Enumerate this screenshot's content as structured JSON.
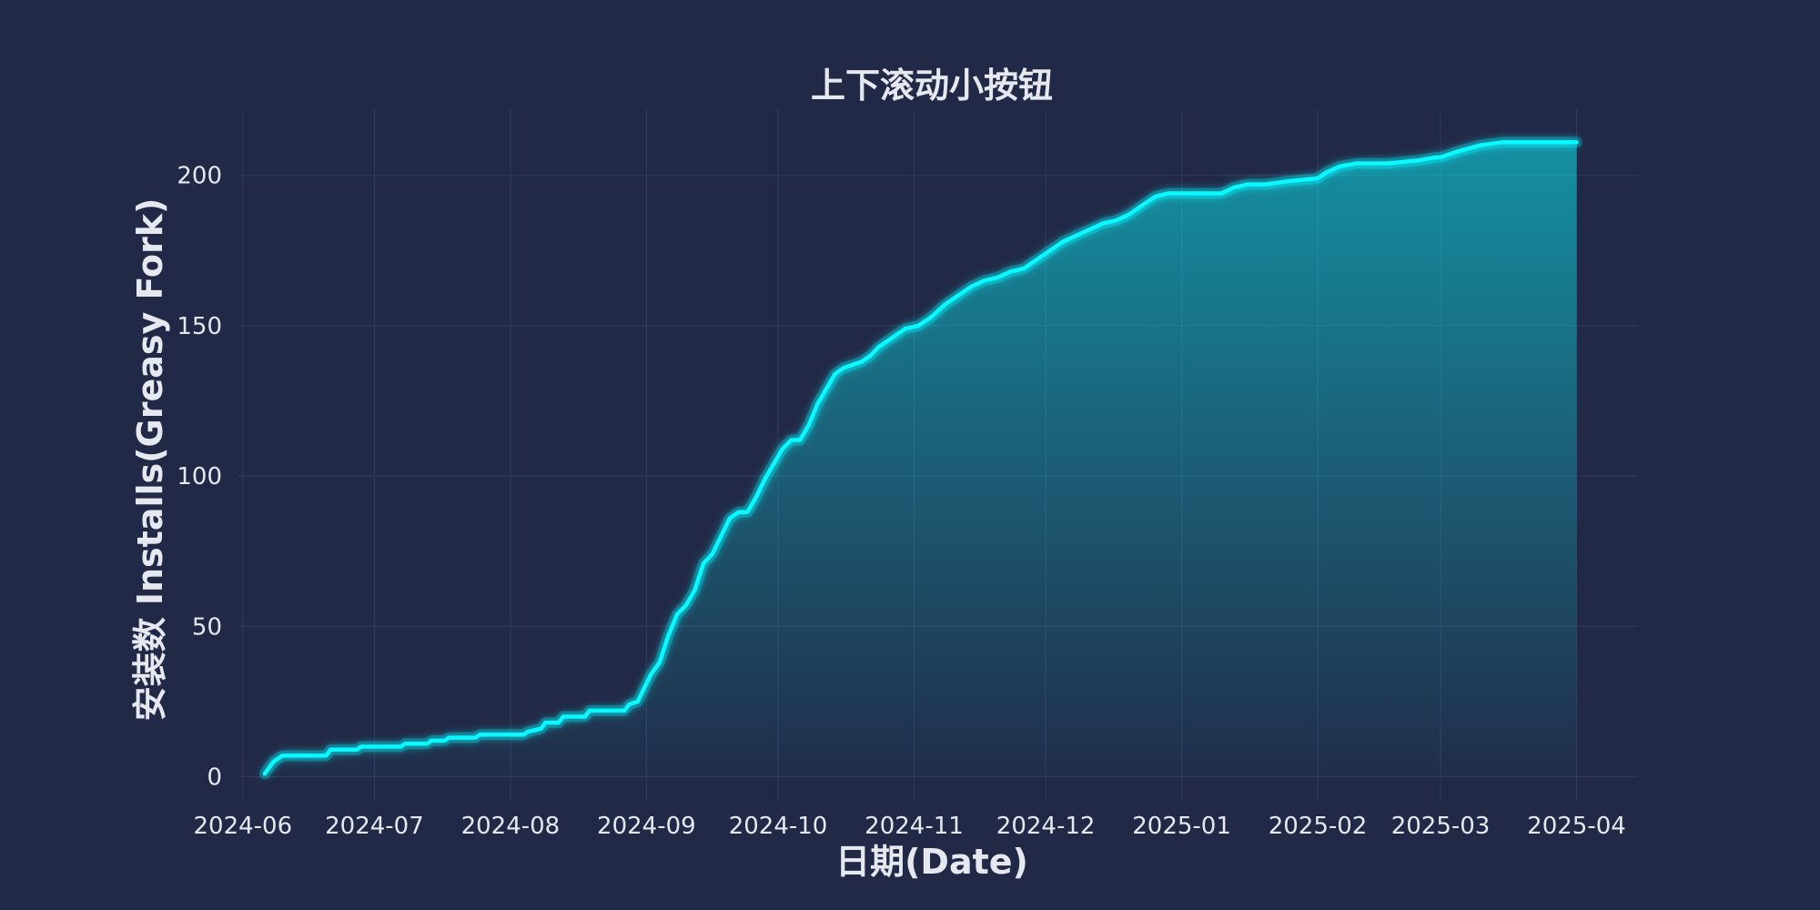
{
  "chart_data": {
    "type": "area",
    "title": "上下滚动小按钮",
    "xlabel": "日期(Date)",
    "ylabel": "安装数 Installs(Greasy Fork)",
    "xlim": [
      "2024-05-31",
      "2025-04-15"
    ],
    "ylim": [
      -8,
      222
    ],
    "x_ticks": [
      "2024-06",
      "2024-07",
      "2024-08",
      "2024-09",
      "2024-10",
      "2024-11",
      "2024-12",
      "2025-01",
      "2025-02",
      "2025-03",
      "2025-04"
    ],
    "y_ticks": [
      0,
      50,
      100,
      150,
      200
    ],
    "grid": true,
    "colors": {
      "background": "#212946",
      "line": "#08F7FE",
      "grid": "#2e3a5c",
      "text": "#e6e8ef"
    },
    "series": [
      {
        "x": [
          "2024-06-06",
          "2024-06-08",
          "2024-06-10",
          "2024-06-20",
          "2024-06-21",
          "2024-06-27",
          "2024-06-28",
          "2024-07-07",
          "2024-07-08",
          "2024-07-13",
          "2024-07-14",
          "2024-07-17",
          "2024-07-18",
          "2024-07-24",
          "2024-07-25",
          "2024-08-04",
          "2024-08-05",
          "2024-08-08",
          "2024-08-09",
          "2024-08-12",
          "2024-08-13",
          "2024-08-18",
          "2024-08-19",
          "2024-08-27",
          "2024-08-28",
          "2024-08-30",
          "2024-08-31",
          "2024-09-02",
          "2024-09-04",
          "2024-09-06",
          "2024-09-08",
          "2024-09-10",
          "2024-09-12",
          "2024-09-14",
          "2024-09-16",
          "2024-09-18",
          "2024-09-20",
          "2024-09-22",
          "2024-09-24",
          "2024-09-26",
          "2024-09-28",
          "2024-09-30",
          "2024-10-02",
          "2024-10-04",
          "2024-10-06",
          "2024-10-08",
          "2024-10-10",
          "2024-10-12",
          "2024-10-14",
          "2024-10-16",
          "2024-10-18",
          "2024-10-20",
          "2024-10-22",
          "2024-10-24",
          "2024-10-27",
          "2024-10-30",
          "2024-11-02",
          "2024-11-05",
          "2024-11-08",
          "2024-11-11",
          "2024-11-14",
          "2024-11-17",
          "2024-11-20",
          "2024-11-23",
          "2024-11-26",
          "2024-11-29",
          "2024-12-02",
          "2024-12-05",
          "2024-12-08",
          "2024-12-11",
          "2024-12-14",
          "2024-12-17",
          "2024-12-20",
          "2024-12-23",
          "2024-12-26",
          "2024-12-29",
          "2025-01-01",
          "2025-01-04",
          "2025-01-07",
          "2025-01-10",
          "2025-01-13",
          "2025-01-16",
          "2025-01-20",
          "2025-01-25",
          "2025-02-01",
          "2025-02-03",
          "2025-02-06",
          "2025-02-10",
          "2025-02-17",
          "2025-02-24",
          "2025-02-28",
          "2025-03-01",
          "2025-03-05",
          "2025-03-10",
          "2025-03-15",
          "2025-03-19",
          "2025-03-20",
          "2025-03-23",
          "2025-03-25",
          "2025-03-27",
          "2025-04-01"
        ],
        "y": [
          1,
          5,
          7,
          7,
          9,
          9,
          10,
          10,
          11,
          11,
          12,
          12,
          13,
          13,
          14,
          14,
          15,
          16,
          18,
          18,
          20,
          20,
          22,
          22,
          24,
          25,
          28,
          34,
          38,
          47,
          54,
          57,
          62,
          71,
          74,
          80,
          86,
          88,
          88,
          93,
          99,
          104,
          109,
          112,
          112,
          117,
          124,
          129,
          134,
          136,
          137,
          138,
          140,
          143,
          146,
          149,
          150,
          153,
          157,
          160,
          163,
          165,
          166,
          168,
          169,
          172,
          175,
          178,
          180,
          182,
          184,
          185,
          187,
          190,
          193,
          194,
          194,
          194,
          194,
          194,
          196,
          197,
          197,
          198,
          199,
          201,
          203,
          204,
          204,
          205,
          206,
          206,
          208,
          210,
          211,
          211,
          211,
          211,
          211,
          211,
          211
        ]
      }
    ]
  }
}
